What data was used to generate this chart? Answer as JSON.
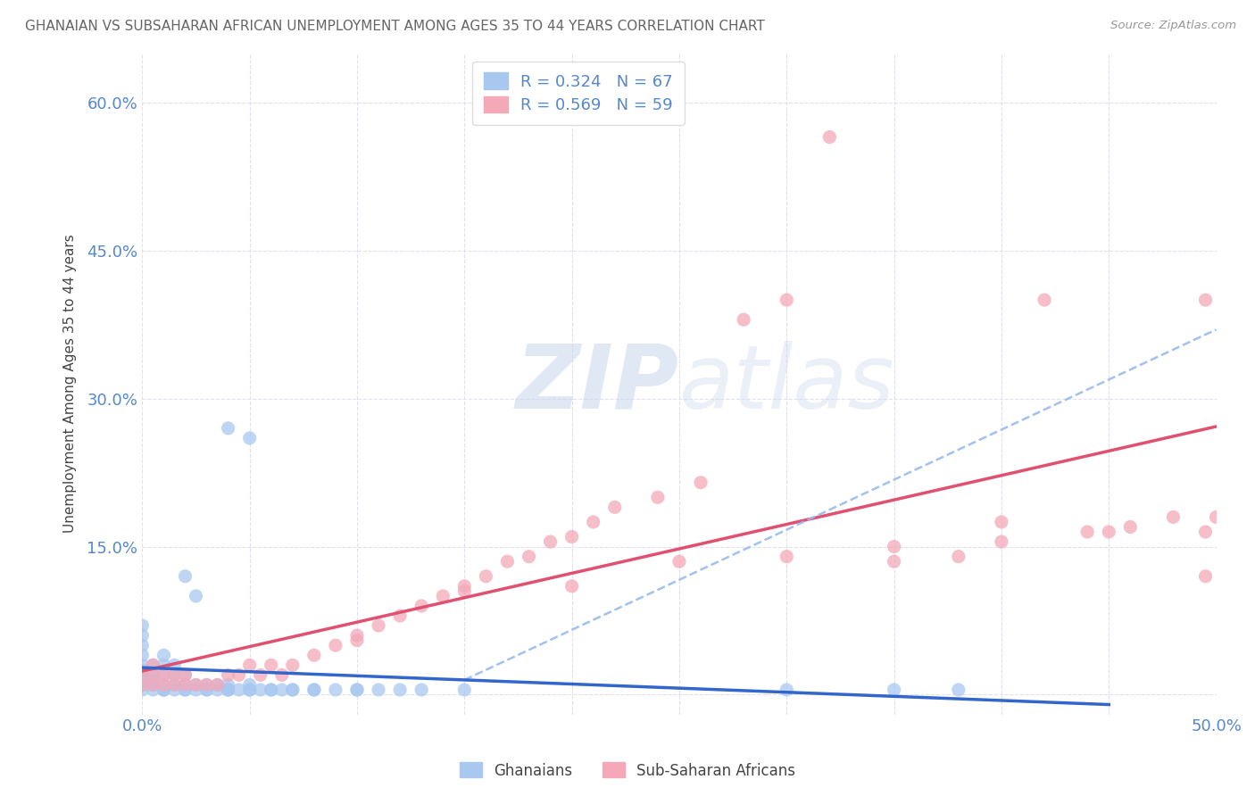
{
  "title": "GHANAIAN VS SUBSAHARAN AFRICAN UNEMPLOYMENT AMONG AGES 35 TO 44 YEARS CORRELATION CHART",
  "source": "Source: ZipAtlas.com",
  "ylabel": "Unemployment Among Ages 35 to 44 years",
  "xlim": [
    0.0,
    0.5
  ],
  "ylim": [
    -0.02,
    0.65
  ],
  "xtick_positions": [
    0.0,
    0.05,
    0.1,
    0.15,
    0.2,
    0.25,
    0.3,
    0.35,
    0.4,
    0.45,
    0.5
  ],
  "xticklabels": [
    "0.0%",
    "",
    "",
    "",
    "",
    "",
    "",
    "",
    "",
    "",
    "50.0%"
  ],
  "ytick_positions": [
    0.0,
    0.15,
    0.3,
    0.45,
    0.6
  ],
  "yticklabels": [
    "",
    "15.0%",
    "30.0%",
    "45.0%",
    "60.0%"
  ],
  "ghanaians_color": "#a8c8f0",
  "subsaharan_color": "#f4a8b8",
  "line_ghanaians_color": "#3366cc",
  "line_subsaharan_color": "#e05070",
  "dashed_line_color": "#99bbee",
  "watermark_color": "#ccd9ee",
  "title_color": "#666666",
  "source_color": "#999999",
  "ylabel_color": "#444444",
  "tick_color": "#5588cc",
  "grid_color": "#ddddee",
  "legend_box_color": "#dddddd",
  "gh_scatter_x": [
    0.0,
    0.0,
    0.0,
    0.0,
    0.0,
    0.0,
    0.0,
    0.0,
    0.0,
    0.0,
    0.005,
    0.005,
    0.005,
    0.005,
    0.005,
    0.01,
    0.01,
    0.01,
    0.01,
    0.01,
    0.015,
    0.015,
    0.015,
    0.015,
    0.02,
    0.02,
    0.02,
    0.025,
    0.025,
    0.03,
    0.03,
    0.035,
    0.035,
    0.04,
    0.04,
    0.045,
    0.05,
    0.05,
    0.055,
    0.06,
    0.065,
    0.07,
    0.08,
    0.09,
    0.1,
    0.11,
    0.12,
    0.13,
    0.15,
    0.04,
    0.05,
    0.02,
    0.025,
    0.3,
    0.35,
    0.38,
    0.01,
    0.01,
    0.02,
    0.03,
    0.04,
    0.04,
    0.05,
    0.06,
    0.07,
    0.08,
    0.1
  ],
  "gh_scatter_y": [
    0.005,
    0.01,
    0.015,
    0.02,
    0.025,
    0.03,
    0.04,
    0.05,
    0.06,
    0.07,
    0.005,
    0.01,
    0.015,
    0.02,
    0.03,
    0.005,
    0.01,
    0.02,
    0.03,
    0.04,
    0.005,
    0.01,
    0.02,
    0.03,
    0.005,
    0.01,
    0.02,
    0.005,
    0.01,
    0.005,
    0.01,
    0.005,
    0.01,
    0.005,
    0.01,
    0.005,
    0.005,
    0.01,
    0.005,
    0.005,
    0.005,
    0.005,
    0.005,
    0.005,
    0.005,
    0.005,
    0.005,
    0.005,
    0.005,
    0.27,
    0.26,
    0.12,
    0.1,
    0.005,
    0.005,
    0.005,
    0.005,
    0.005,
    0.005,
    0.005,
    0.005,
    0.005,
    0.005,
    0.005,
    0.005,
    0.005,
    0.005
  ],
  "ss_scatter_x": [
    0.0,
    0.0,
    0.005,
    0.005,
    0.005,
    0.01,
    0.01,
    0.015,
    0.015,
    0.02,
    0.02,
    0.025,
    0.03,
    0.035,
    0.04,
    0.045,
    0.05,
    0.055,
    0.06,
    0.065,
    0.07,
    0.08,
    0.09,
    0.1,
    0.11,
    0.12,
    0.13,
    0.14,
    0.15,
    0.16,
    0.17,
    0.18,
    0.19,
    0.2,
    0.21,
    0.22,
    0.24,
    0.26,
    0.28,
    0.3,
    0.32,
    0.35,
    0.38,
    0.4,
    0.42,
    0.44,
    0.46,
    0.48,
    0.495,
    0.495,
    0.495,
    0.1,
    0.15,
    0.2,
    0.25,
    0.3,
    0.35,
    0.4,
    0.45,
    0.5
  ],
  "ss_scatter_y": [
    0.01,
    0.02,
    0.01,
    0.02,
    0.03,
    0.01,
    0.02,
    0.01,
    0.02,
    0.01,
    0.02,
    0.01,
    0.01,
    0.01,
    0.02,
    0.02,
    0.03,
    0.02,
    0.03,
    0.02,
    0.03,
    0.04,
    0.05,
    0.06,
    0.07,
    0.08,
    0.09,
    0.1,
    0.11,
    0.12,
    0.135,
    0.14,
    0.155,
    0.16,
    0.175,
    0.19,
    0.2,
    0.215,
    0.38,
    0.4,
    0.565,
    0.135,
    0.14,
    0.175,
    0.4,
    0.165,
    0.17,
    0.18,
    0.4,
    0.165,
    0.12,
    0.055,
    0.105,
    0.11,
    0.135,
    0.14,
    0.15,
    0.155,
    0.165,
    0.18
  ]
}
